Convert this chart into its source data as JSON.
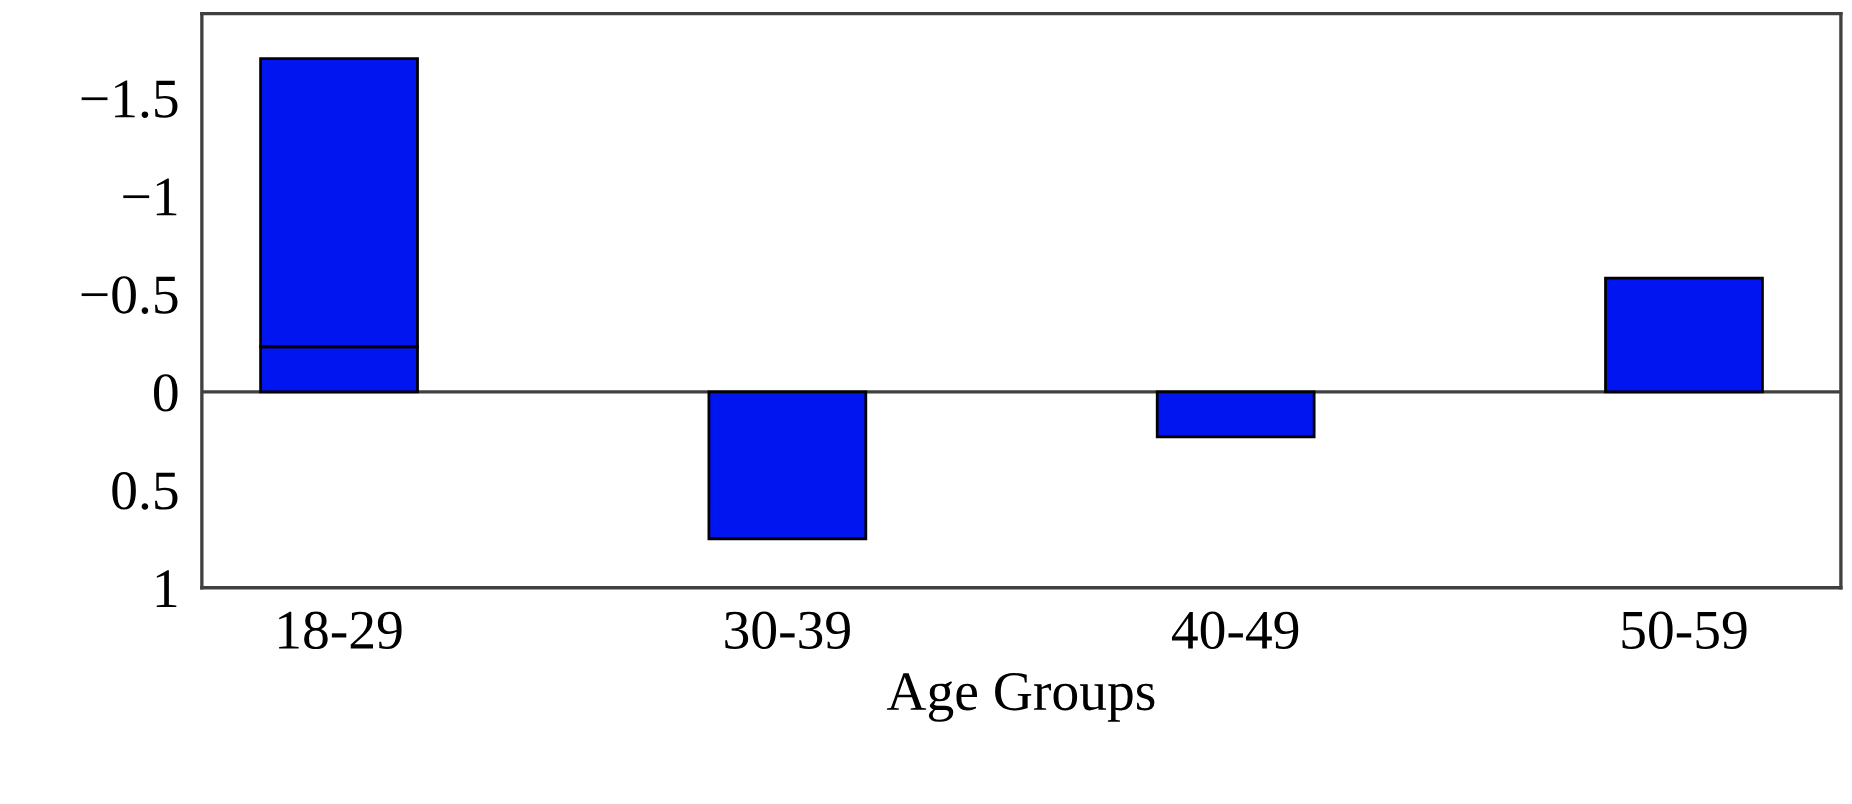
{
  "chart_data": {
    "type": "bar",
    "xlabel": "Age Groups",
    "categories": [
      "18-29",
      "30-39",
      "40-49",
      "50-59"
    ],
    "stacked": true,
    "series": [
      {
        "color": "#0015f0",
        "values": [
          -0.23,
          0.75,
          0.23,
          -0.58
        ]
      },
      {
        "color": "#0015f0",
        "values": [
          -1.47,
          null,
          null,
          null
        ]
      }
    ],
    "ylim": [
      1,
      -1.93
    ],
    "yticks": [
      {
        "value": -1.5,
        "label": "−1.5"
      },
      {
        "value": -1,
        "label": "−1"
      },
      {
        "value": -0.5,
        "label": "−0.5"
      },
      0,
      0.5,
      1
    ],
    "ref_lines": [
      {
        "axis": "y",
        "value": 0,
        "color": "#404040"
      }
    ],
    "grid": false
  }
}
